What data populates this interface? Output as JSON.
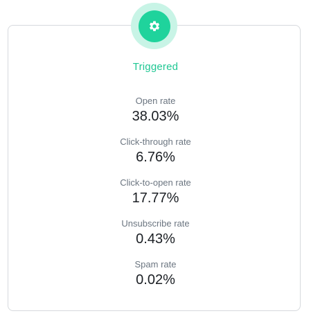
{
  "colors": {
    "accent": "#1fd39c",
    "accent_light": "#c8f4e6",
    "title_text": "#1fc793",
    "label_text": "#6b7580",
    "value_text": "#1b1f24",
    "border": "#d6d9dd"
  },
  "badge": {
    "icon": "gear-icon"
  },
  "status": {
    "title": "Triggered"
  },
  "metrics": [
    {
      "label": "Open rate",
      "value": "38.03%"
    },
    {
      "label": "Click-through rate",
      "value": "6.76%"
    },
    {
      "label": "Click-to-open rate",
      "value": "17.77%"
    },
    {
      "label": "Unsubscribe rate",
      "value": "0.43%"
    },
    {
      "label": "Spam rate",
      "value": "0.02%"
    }
  ]
}
